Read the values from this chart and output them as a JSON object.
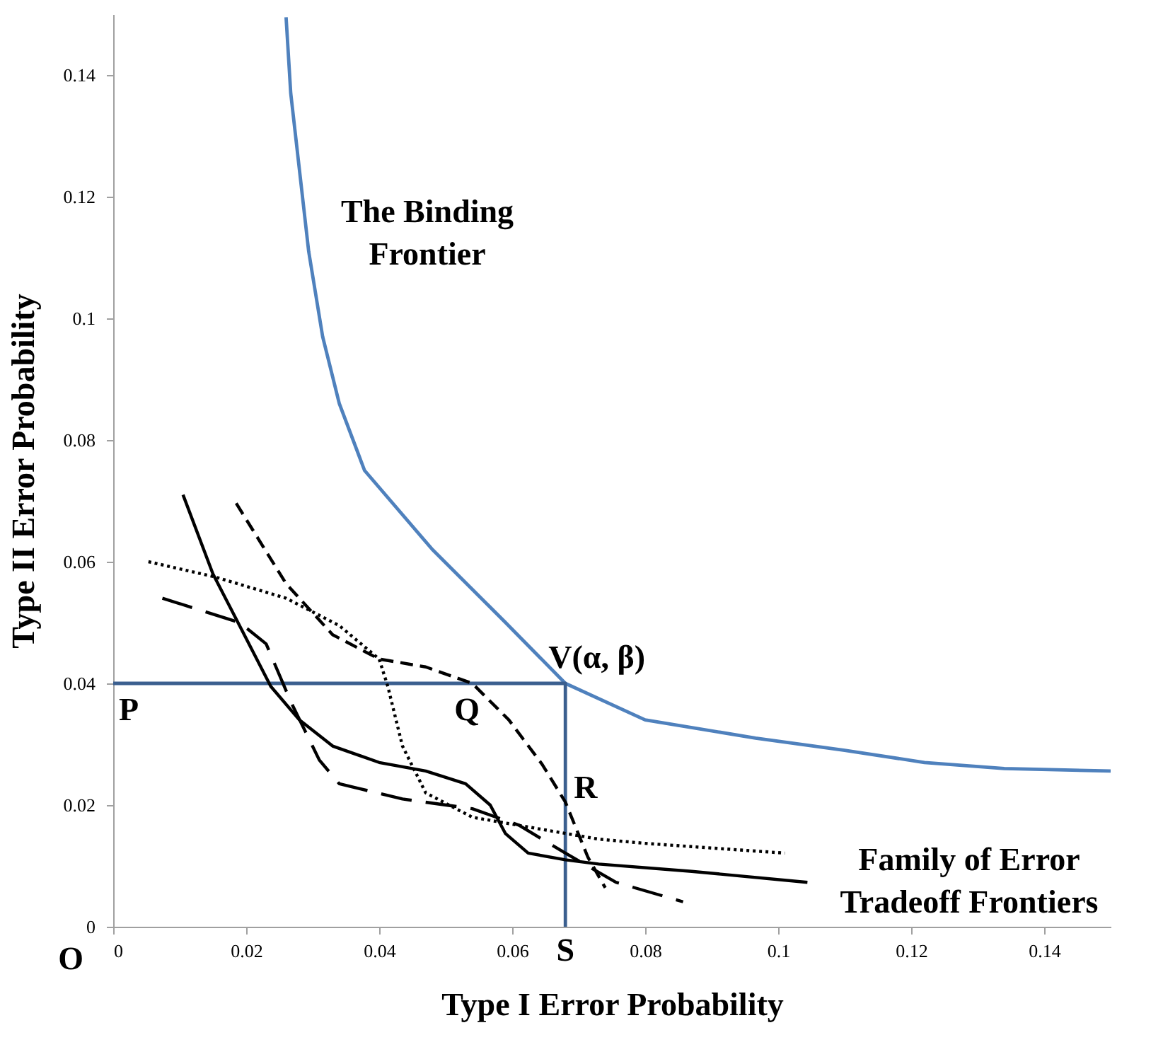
{
  "chart_data": {
    "type": "line",
    "xlabel": "Type I Error Probability",
    "ylabel": "Type II Error Probability",
    "xlim": [
      0,
      0.15
    ],
    "ylim": [
      0,
      0.15
    ],
    "xticks": [
      0,
      0.02,
      0.04,
      0.06,
      0.08,
      0.1,
      0.12,
      0.14
    ],
    "yticks": [
      0,
      0.02,
      0.04,
      0.06,
      0.08,
      0.1,
      0.12,
      0.14
    ],
    "grid": false,
    "marker": "none",
    "series": [
      {
        "color": "#4f81bd",
        "line_style": "solid",
        "x": [
          0.026,
          0.0267,
          0.0294,
          0.0315,
          0.034,
          0.0378,
          0.048,
          0.059,
          0.068,
          0.08,
          0.0966,
          0.11,
          0.122,
          0.134,
          0.15
        ],
        "values": [
          0.1495,
          0.137,
          0.111,
          0.097,
          0.086,
          0.075,
          0.062,
          0.05,
          0.04,
          0.034,
          0.031,
          0.029,
          0.027,
          0.026,
          0.0256
        ]
      },
      {
        "color": "#3b5f8f",
        "line_style": "solid",
        "x": [
          0,
          0.068,
          0.068
        ],
        "values": [
          0.04,
          0.04,
          0
        ]
      },
      {
        "color": "#000000",
        "line_style": "solid",
        "x": [
          0.0105,
          0.015,
          0.019,
          0.0237,
          0.028,
          0.033,
          0.04,
          0.047,
          0.053,
          0.0567,
          0.059,
          0.0624,
          0.068,
          0.073,
          0.087,
          0.1044
        ],
        "values": [
          0.071,
          0.058,
          0.0495,
          0.0395,
          0.034,
          0.0297,
          0.027,
          0.0256,
          0.0235,
          0.02,
          0.0153,
          0.0121,
          0.011,
          0.0103,
          0.0091,
          0.0073
        ]
      },
      {
        "color": "#000000",
        "line_style": "dashed",
        "x": [
          0.0185,
          0.026,
          0.033,
          0.04,
          0.047,
          0.054,
          0.0595,
          0.0645,
          0.068,
          0.0714,
          0.074
        ],
        "values": [
          0.0696,
          0.0564,
          0.048,
          0.044,
          0.0427,
          0.04,
          0.034,
          0.0267,
          0.0205,
          0.0114,
          0.0064
        ]
      },
      {
        "color": "#000000",
        "line_style": "dotted",
        "x": [
          0.0053,
          0.0153,
          0.026,
          0.034,
          0.04,
          0.0413,
          0.0435,
          0.047,
          0.054,
          0.0645,
          0.073,
          0.08,
          0.101
        ],
        "values": [
          0.06,
          0.0575,
          0.054,
          0.0495,
          0.044,
          0.0395,
          0.0297,
          0.022,
          0.018,
          0.016,
          0.0144,
          0.0137,
          0.0121
        ]
      },
      {
        "color": "#000000",
        "line_style": "dashed",
        "x": [
          0.0074,
          0.019,
          0.023,
          0.0267,
          0.031,
          0.034,
          0.0435,
          0.054,
          0.061,
          0.068,
          0.0756,
          0.0857
        ],
        "values": [
          0.054,
          0.05,
          0.0465,
          0.037,
          0.0274,
          0.0235,
          0.021,
          0.0194,
          0.0167,
          0.0121,
          0.0073,
          0.0041
        ]
      }
    ],
    "annotations": [
      "The Binding\nFrontier",
      {
        "text": "V(α, β)",
        "x": 0.068,
        "y": 0.04
      },
      {
        "text": "P",
        "x": 0,
        "y": 0.04
      },
      {
        "text": "Q",
        "x": 0.053,
        "y": 0.04
      },
      {
        "text": "R",
        "x": 0.068,
        "y": 0.0205
      },
      {
        "text": "S",
        "x": 0.068,
        "y": 0
      },
      "O",
      "Family of Error\nTradeoff Frontiers"
    ]
  }
}
